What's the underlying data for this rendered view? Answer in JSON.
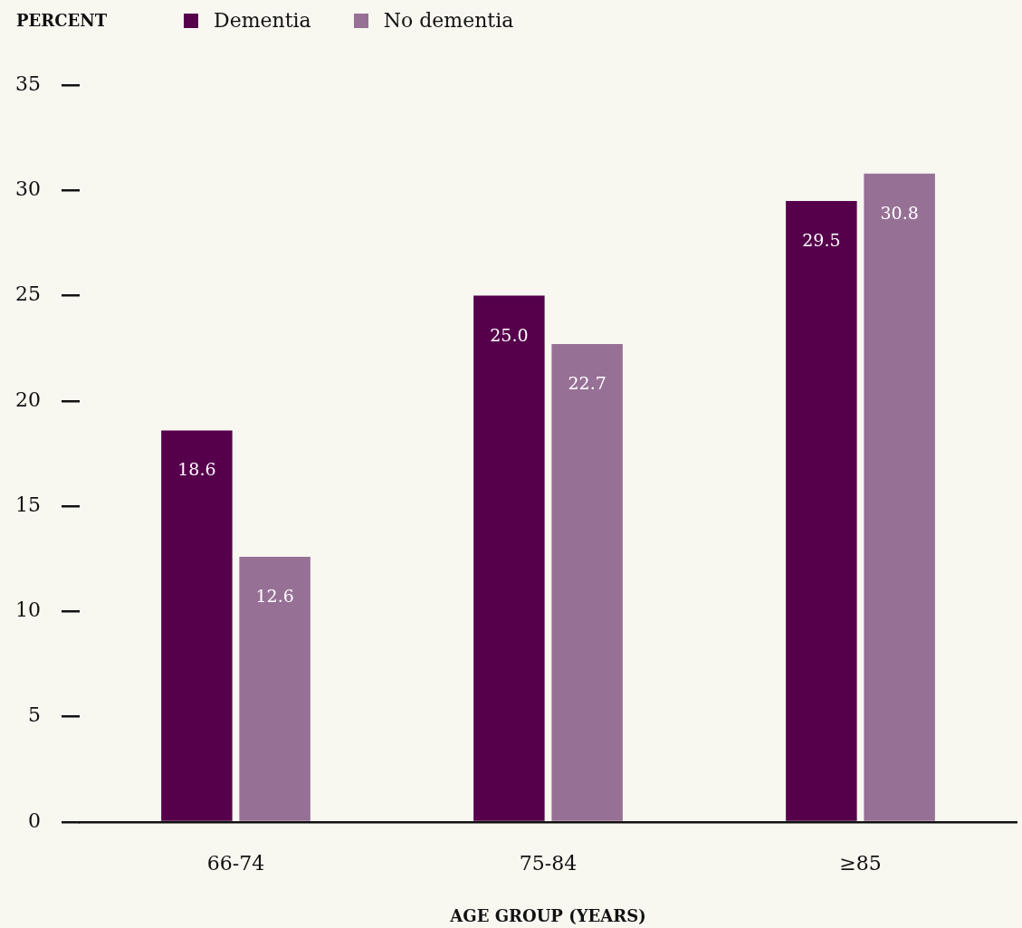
{
  "chart_data": {
    "type": "bar",
    "ylabel": "PERCENT",
    "xlabel": "AGE GROUP (YEARS)",
    "legend": "top left",
    "categories": [
      "66-74",
      "75-84",
      "≥85"
    ],
    "series": [
      {
        "name": "Dementia",
        "color": "#56004c",
        "values": [
          18.6,
          25.0,
          29.5
        ],
        "value_labels": [
          "18.6",
          "25.0",
          "29.5"
        ]
      },
      {
        "name": "No dementia",
        "color": "#977096",
        "values": [
          12.6,
          22.7,
          30.8
        ],
        "value_labels": [
          "12.6",
          "22.7",
          "30.8"
        ]
      }
    ],
    "ylim": [
      0,
      35
    ],
    "yticks": [
      0,
      5,
      10,
      15,
      20,
      25,
      30,
      35
    ]
  }
}
